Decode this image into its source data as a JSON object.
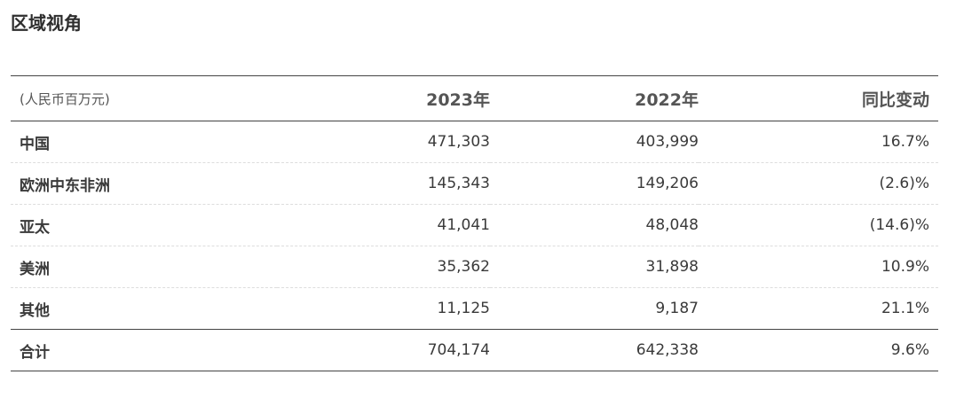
{
  "title": "区域视角",
  "table": {
    "unit": "(人民币百万元)",
    "headers": [
      "2023年",
      "2022年",
      "同比变动"
    ],
    "rows": [
      {
        "label": "中国",
        "y2023": "471,303",
        "y2022": "403,999",
        "change": "16.7%"
      },
      {
        "label": "欧洲中东非洲",
        "y2023": "145,343",
        "y2022": "149,206",
        "change": "(2.6)%"
      },
      {
        "label": "亚太",
        "y2023": "41,041",
        "y2022": "48,048",
        "change": "(14.6)%"
      },
      {
        "label": "美洲",
        "y2023": "35,362",
        "y2022": "31,898",
        "change": "10.9%"
      },
      {
        "label": "其他",
        "y2023": "11,125",
        "y2022": "9,187",
        "change": "21.1%"
      }
    ],
    "total": {
      "label": "合计",
      "y2023": "704,174",
      "y2022": "642,338",
      "change": "9.6%"
    }
  }
}
